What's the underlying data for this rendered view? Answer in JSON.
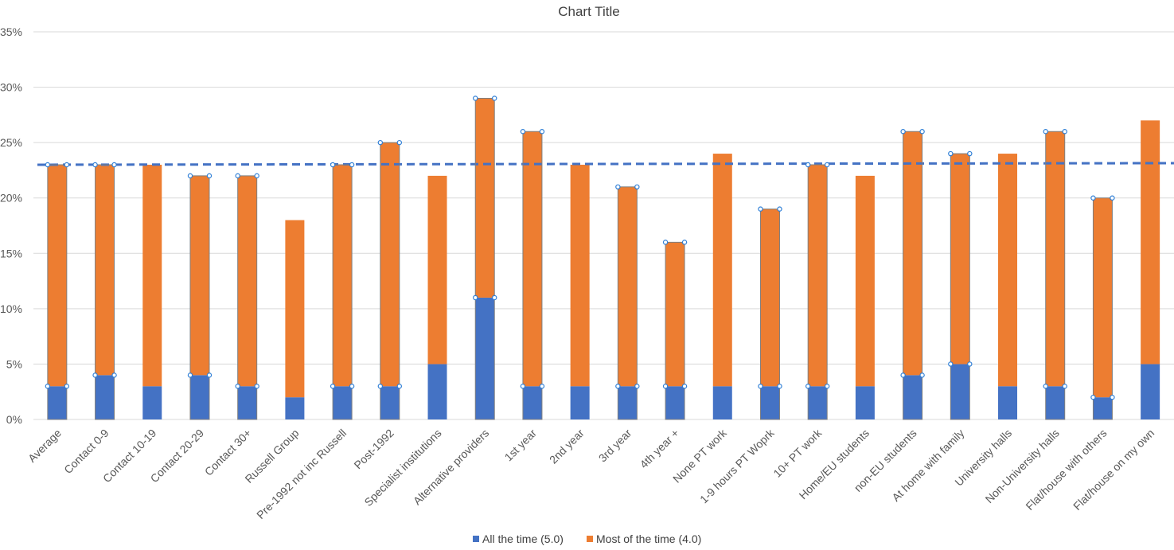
{
  "chart_data": {
    "type": "bar",
    "stacked": true,
    "title": "Chart Title",
    "xlabel": "",
    "ylabel": "",
    "ylim": [
      0,
      35
    ],
    "yticks": [
      "0%",
      "5%",
      "10%",
      "15%",
      "20%",
      "25%",
      "30%",
      "35%"
    ],
    "ytick_values": [
      0,
      5,
      10,
      15,
      20,
      25,
      30,
      35
    ],
    "grid": true,
    "legend_position": "bottom",
    "categories": [
      "Average",
      "Contact 0-9",
      "Contact 10-19",
      "Contact 20-29",
      "Contact 30+",
      "Russell Group",
      "Pre-1992 not inc Russell",
      "Post-1992",
      "Specialist institutions",
      "Alternative providers",
      "1st year",
      "2nd year",
      "3rd year",
      "4th year +",
      "None PT work",
      "1-9 hours PT Woprk",
      "10+ PT work",
      "Home/EU students",
      "non-EU students",
      "At home with family",
      "University halls",
      "Non-University halls",
      "Flat/house with others",
      "Flat/house on my own"
    ],
    "series": [
      {
        "name": "All the time (5.0)",
        "color": "#4472C4",
        "values": [
          3,
          4,
          3,
          4,
          3,
          2,
          3,
          3,
          5,
          11,
          3,
          3,
          3,
          3,
          3,
          3,
          3,
          3,
          4,
          5,
          3,
          3,
          2,
          5
        ]
      },
      {
        "name": "Most of the time (4.0)",
        "color": "#ED7D31",
        "values": [
          20,
          19,
          20,
          18,
          19,
          16,
          20,
          22,
          17,
          18,
          23,
          20,
          18,
          13,
          21,
          16,
          20,
          19,
          22,
          19,
          21,
          23,
          18,
          22
        ]
      }
    ],
    "reference_line": {
      "value": 23,
      "color": "#4472C4",
      "style": "dashed"
    },
    "selected_marker_categories": [
      0,
      1,
      3,
      4,
      6,
      7,
      9,
      10,
      12,
      13,
      15,
      16,
      18,
      19,
      21,
      22
    ]
  }
}
